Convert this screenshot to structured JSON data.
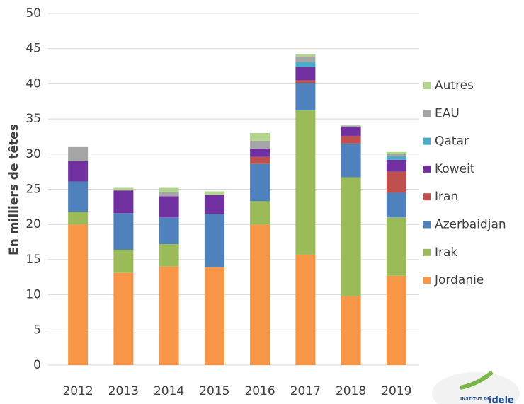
{
  "chart_data": {
    "type": "stacked_bar",
    "ylabel": "En milliers de têtes",
    "categories": [
      "2012",
      "2013",
      "2014",
      "2015",
      "2016",
      "2017",
      "2018",
      "2019"
    ],
    "series": [
      {
        "name": "Jordanie",
        "color": "#f79646",
        "values": [
          20,
          13.1,
          14,
          13.9,
          20,
          15.7,
          9.8,
          12.7
        ]
      },
      {
        "name": "Irak",
        "color": "#9bbb59",
        "values": [
          1.8,
          3.3,
          3.2,
          0,
          3.3,
          20.5,
          16.9,
          8.3
        ]
      },
      {
        "name": "Azerbaidjan",
        "color": "#4f81bd",
        "values": [
          4.3,
          5.2,
          3.8,
          7.6,
          5.3,
          3.9,
          4.8,
          3.5
        ]
      },
      {
        "name": "Iran",
        "color": "#c0504d",
        "values": [
          0,
          0,
          0,
          0,
          1,
          0.4,
          1.1,
          3
        ]
      },
      {
        "name": "Koweit",
        "color": "#7030a0",
        "values": [
          2.9,
          3.2,
          3,
          2.7,
          1.2,
          1.9,
          1.3,
          1.7
        ]
      },
      {
        "name": "Qatar",
        "color": "#4bacc6",
        "values": [
          0,
          0,
          0,
          0,
          0,
          0.7,
          0,
          0.5
        ]
      },
      {
        "name": "EAU",
        "color": "#a5a5a5",
        "values": [
          2,
          0.1,
          0.6,
          0,
          1.1,
          0.8,
          0.1,
          0.3
        ]
      },
      {
        "name": "Autres",
        "color": "#b3d68f",
        "values": [
          0,
          0.3,
          0.6,
          0.5,
          1.1,
          0.3,
          0.1,
          0.3
        ]
      }
    ],
    "ylim": [
      0,
      50
    ],
    "yticks": [
      0,
      5,
      10,
      15,
      20,
      25,
      30,
      35,
      40,
      45,
      50
    ],
    "grid": true,
    "legend": "right"
  },
  "logo": {
    "prefix": "INSTITUT DE",
    "name": "idele"
  }
}
